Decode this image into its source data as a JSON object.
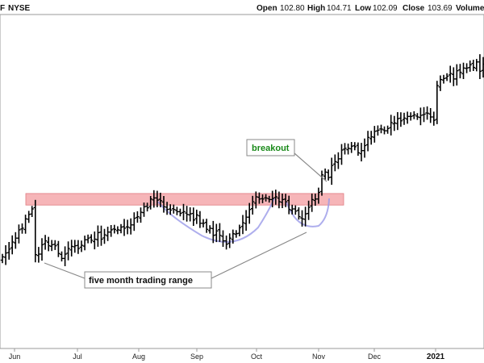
{
  "header": {
    "symbol": "F",
    "exchange": "NYSE",
    "open_label": "Open",
    "open": "102.80",
    "high_label": "High",
    "high": "104.71",
    "low_label": "Low",
    "low": "102.09",
    "close_label": "Close",
    "close": "103.69",
    "volume_label": "Volume"
  },
  "chart_data": {
    "type": "ohlc",
    "x_ticks": [
      "Jun",
      "Jul",
      "Aug",
      "Sep",
      "Oct",
      "Nov",
      "Dec",
      "2021"
    ],
    "x_tick_bold": "2021",
    "range_zone": {
      "low": 85.3,
      "high": 87.4
    },
    "annotations": [
      {
        "text": "breakout",
        "color": "#1a8a1a"
      },
      {
        "text": "five month trading range",
        "color": "#111111"
      }
    ],
    "bar_color": "#000000",
    "zone_color": "#f4a8ac",
    "curve_color": "#9a9ae8",
    "closes": [
      75.9,
      76.6,
      77.3,
      78.6,
      79.3,
      80.8,
      81.1,
      82.8,
      83.6,
      84.6,
      76.3,
      76.4,
      78.1,
      78.8,
      77.9,
      78.1,
      77.9,
      76.5,
      75.6,
      76.4,
      77.4,
      77.8,
      77.9,
      77.4,
      78.0,
      79.0,
      79.3,
      78.9,
      79.1,
      80.3,
      79.1,
      79.9,
      80.4,
      80.8,
      80.9,
      80.8,
      81.3,
      81.1,
      81.3,
      81.7,
      82.9,
      83.2,
      84.0,
      85.0,
      84.8,
      86.4,
      86.6,
      86.2,
      86.1,
      85.0,
      84.5,
      84.4,
      84.5,
      84.1,
      83.8,
      84.1,
      83.6,
      83.7,
      82.6,
      83.5,
      82.0,
      82.0,
      80.9,
      81.1,
      79.8,
      80.6,
      79.8,
      78.8,
      78.2,
      79.3,
      80.1,
      80.1,
      81.2,
      82.1,
      83.1,
      84.5,
      85.9,
      86.8,
      86.4,
      86.4,
      86.6,
      86.3,
      86.5,
      86.8,
      85.9,
      86.3,
      85.9,
      84.5,
      84.6,
      84.2,
      83.2,
      82.8,
      83.7,
      84.9,
      86.3,
      86.4,
      87.6,
      90.8,
      91.3,
      90.3,
      92.5,
      93.2,
      93.7,
      95.3,
      95.6,
      95.6,
      96.0,
      95.9,
      94.8,
      95.2,
      96.1,
      97.6,
      97.7,
      98.7,
      98.9,
      99.1,
      98.8,
      99.2,
      100.3,
      100.2,
      101.0,
      100.6,
      101.1,
      101.4,
      101.4,
      101.7,
      101.3,
      101.6,
      101.8,
      102.0,
      101.3,
      100.7,
      107.0,
      108.1,
      108.3,
      108.7,
      109.2,
      108.2,
      109.7,
      109.4,
      110.2,
      110.2,
      110.8,
      110.3,
      111.3,
      109.6,
      110.9
    ]
  }
}
